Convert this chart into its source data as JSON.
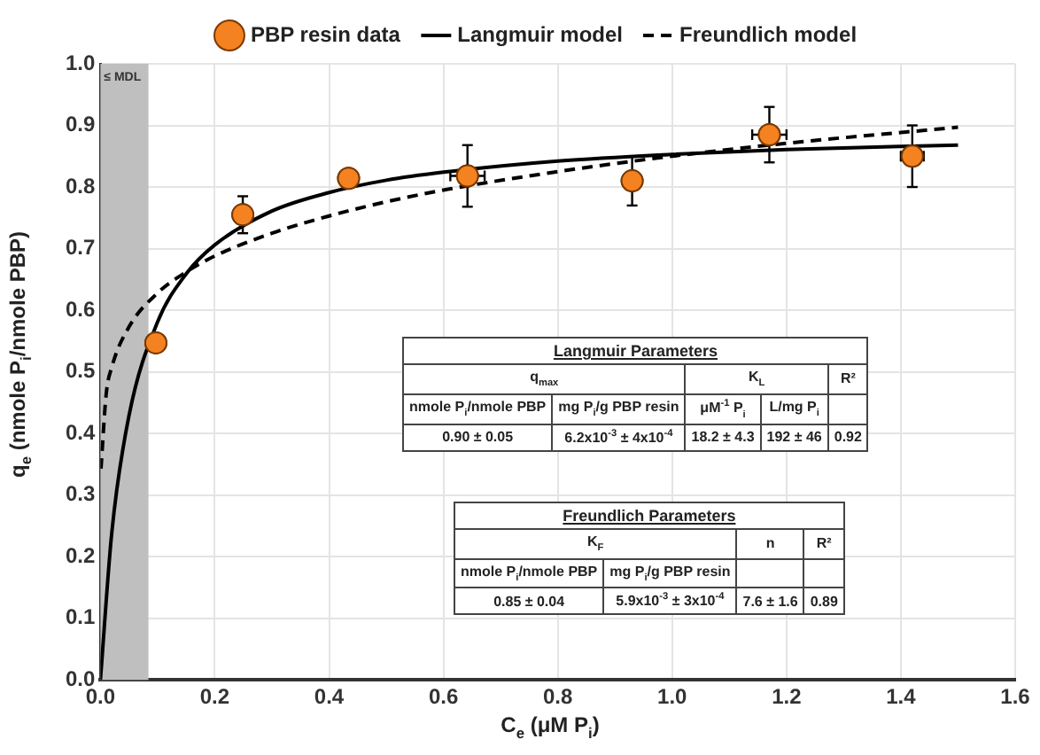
{
  "chart_data": {
    "type": "scatter",
    "xlabel": "C$_{e}$ (μM P$_{i}$)",
    "ylabel": "q$_{e}$ (nmole P$_{i}$/nmole PBP)",
    "xlim": [
      0,
      1.6
    ],
    "xticks": [
      {
        "value": 0,
        "label": "0.0"
      },
      {
        "value": 0.2,
        "label": "0.2"
      },
      {
        "value": 0.4,
        "label": "0.4"
      },
      {
        "value": 0.6,
        "label": "0.6"
      },
      {
        "value": 0.8,
        "label": "0.8"
      },
      {
        "value": 1,
        "label": "1.0"
      },
      {
        "value": 1.2,
        "label": "1.2"
      },
      {
        "value": 1.4,
        "label": "1.4"
      },
      {
        "value": 1.6,
        "label": "1.6"
      }
    ],
    "ylim": [
      0,
      1
    ],
    "yticks": [
      {
        "value": 0,
        "label": "0.0"
      },
      {
        "value": 0.1,
        "label": "0.1"
      },
      {
        "value": 0.2,
        "label": "0.2"
      },
      {
        "value": 0.3,
        "label": "0.3"
      },
      {
        "value": 0.4,
        "label": "0.4"
      },
      {
        "value": 0.5,
        "label": "0.5"
      },
      {
        "value": 0.6,
        "label": "0.6"
      },
      {
        "value": 0.7,
        "label": "0.7"
      },
      {
        "value": 0.8,
        "label": "0.8"
      },
      {
        "value": 0.9,
        "label": "0.9"
      },
      {
        "value": 1,
        "label": "1.0"
      }
    ],
    "grid": true,
    "legend": "top",
    "bands": [
      {
        "axis": "x",
        "from": 0,
        "to": 0.084,
        "label": "≤ MDL",
        "color": "#bfbfbf"
      }
    ],
    "series": [
      {
        "name": "PBP resin data",
        "color": "#f58220",
        "marker": "circle",
        "x": [
          0.097,
          0.249,
          0.434,
          0.642,
          0.93,
          1.17,
          1.42
        ],
        "values": [
          0.547,
          0.755,
          0.814,
          0.818,
          0.81,
          0.885,
          0.85
        ],
        "errors": [
          null,
          0.03,
          null,
          0.05,
          0.04,
          0.045,
          0.05
        ],
        "xerrors": [
          null,
          null,
          null,
          0.03,
          null,
          0.03,
          0.02
        ]
      },
      {
        "name": "Langmuir model",
        "type": "line",
        "color": "#000000",
        "marker": "none",
        "line_style": "solid",
        "x": [
          0,
          0.02,
          0.05,
          0.1,
          0.15,
          0.2,
          0.3,
          0.4,
          0.5,
          0.6,
          0.8,
          1.0,
          1.2,
          1.5
        ],
        "values": [
          0,
          0.24,
          0.429,
          0.581,
          0.659,
          0.706,
          0.761,
          0.791,
          0.811,
          0.824,
          0.842,
          0.853,
          0.861,
          0.868
        ]
      },
      {
        "name": "Freundlich model",
        "type": "line",
        "color": "#000000",
        "marker": "none",
        "line_style": "dashed",
        "x": [
          0.001,
          0.01,
          0.02,
          0.05,
          0.1,
          0.15,
          0.2,
          0.3,
          0.4,
          0.5,
          0.6,
          0.8,
          1.0,
          1.2,
          1.5
        ],
        "values": [
          0.343,
          0.463,
          0.508,
          0.573,
          0.628,
          0.662,
          0.688,
          0.725,
          0.753,
          0.776,
          0.795,
          0.825,
          0.85,
          0.871,
          0.897
        ]
      }
    ],
    "annotations": [
      "Langmuir Parameters",
      "q$_{max}$",
      "K$_{L}$",
      "R²",
      "nmole P$_{i}$/nmole PBP",
      "mg P$_{i}$/g PBP resin",
      "μM$^{-1}$ P$_{i}$",
      "L/mg P$_{i}$",
      "0.90 ± 0.05",
      "6.2x10$^{-3}$ ± 4x10$^{-4}$",
      "18.2 ± 4.3",
      "192 ± 46",
      "0.92",
      "Freundlich Parameters",
      "K$_{F}$",
      "n",
      "R²",
      "nmole P$_{i}$/nmole PBP",
      "mg P$_{i}$/g PBP resin",
      "0.85 ± 0.04",
      "5.9x10$^{-3}$ ± 3x10$^{-4}$",
      "7.6 ± 1.6",
      "0.89"
    ]
  }
}
